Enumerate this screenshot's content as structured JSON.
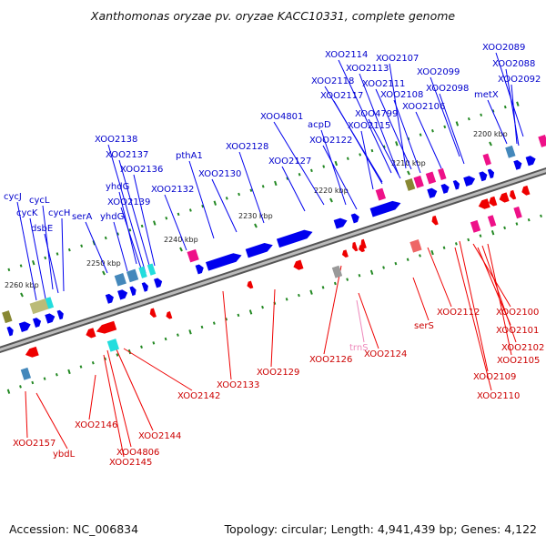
{
  "title": "Xanthomonas oryzae pv. oryzae KACC10331, complete genome",
  "footer": {
    "accession": "Accession: NC_006834",
    "summary": "Topology: circular; Length: 4,941,439 bp; Genes: 4,122"
  },
  "ticks": [
    {
      "label": "2200 kbp",
      "pos": 2200
    },
    {
      "label": "2210 kbp",
      "pos": 2210
    },
    {
      "label": "2220 kbp",
      "pos": 2220
    },
    {
      "label": "2230 kbp",
      "pos": 2230
    },
    {
      "label": "2240 kbp",
      "pos": 2240
    },
    {
      "label": "2250 kbp",
      "pos": 2250
    },
    {
      "label": "2260 kbp",
      "pos": 2260
    }
  ],
  "forward_labels": [
    {
      "text": "XOO2089",
      "strand": "forward"
    },
    {
      "text": "XOO2088",
      "strand": "forward"
    },
    {
      "text": "XOO2092",
      "strand": "forward"
    },
    {
      "text": "metX",
      "strand": "forward"
    },
    {
      "text": "XOO2107",
      "strand": "forward"
    },
    {
      "text": "XOO2114",
      "strand": "forward"
    },
    {
      "text": "XOO2099",
      "strand": "forward"
    },
    {
      "text": "XOO2113",
      "strand": "forward"
    },
    {
      "text": "XOO2098",
      "strand": "forward"
    },
    {
      "text": "XOO2118",
      "strand": "forward"
    },
    {
      "text": "XOO2111",
      "strand": "forward"
    },
    {
      "text": "XOO2117",
      "strand": "forward"
    },
    {
      "text": "XOO2108",
      "strand": "forward"
    },
    {
      "text": "XOO2106",
      "strand": "forward"
    },
    {
      "text": "XOO4799",
      "strand": "forward"
    },
    {
      "text": "XOO4801",
      "strand": "forward"
    },
    {
      "text": "XOO2115",
      "strand": "forward"
    },
    {
      "text": "acpD",
      "strand": "forward"
    },
    {
      "text": "XOO2122",
      "strand": "forward"
    },
    {
      "text": "XOO2138",
      "strand": "forward"
    },
    {
      "text": "XOO2128",
      "strand": "forward"
    },
    {
      "text": "pthA1",
      "strand": "forward"
    },
    {
      "text": "XOO2137",
      "strand": "forward"
    },
    {
      "text": "XOO2127",
      "strand": "forward"
    },
    {
      "text": "XOO2136",
      "strand": "forward"
    },
    {
      "text": "XOO2130",
      "strand": "forward"
    },
    {
      "text": "yhdG",
      "strand": "forward"
    },
    {
      "text": "XOO2132",
      "strand": "forward"
    },
    {
      "text": "cycJ",
      "strand": "forward"
    },
    {
      "text": "cycL",
      "strand": "forward"
    },
    {
      "text": "XOO2139",
      "strand": "forward"
    },
    {
      "text": "cycK",
      "strand": "forward"
    },
    {
      "text": "cycH",
      "strand": "forward"
    },
    {
      "text": "serA",
      "strand": "forward"
    },
    {
      "text": "yhdG",
      "strand": "forward"
    },
    {
      "text": "dsbE",
      "strand": "forward"
    }
  ],
  "reverse_labels": [
    {
      "text": "XOO2100",
      "strand": "reverse"
    },
    {
      "text": "XOO2112",
      "strand": "reverse"
    },
    {
      "text": "XOO2101",
      "strand": "reverse"
    },
    {
      "text": "serS",
      "strand": "reverse"
    },
    {
      "text": "XOO2102",
      "strand": "reverse"
    },
    {
      "text": "trnS",
      "strand": "rna"
    },
    {
      "text": "XOO2105",
      "strand": "reverse"
    },
    {
      "text": "XOO2126",
      "strand": "reverse"
    },
    {
      "text": "XOO2124",
      "strand": "reverse"
    },
    {
      "text": "XOO2129",
      "strand": "reverse"
    },
    {
      "text": "XOO2109",
      "strand": "reverse"
    },
    {
      "text": "XOO2133",
      "strand": "reverse"
    },
    {
      "text": "XOO2110",
      "strand": "reverse"
    },
    {
      "text": "XOO2142",
      "strand": "reverse"
    },
    {
      "text": "XOO2146",
      "strand": "reverse"
    },
    {
      "text": "XOO2144",
      "strand": "reverse"
    },
    {
      "text": "XOO2157",
      "strand": "reverse"
    },
    {
      "text": "XOO4806",
      "strand": "reverse"
    },
    {
      "text": "ybdL",
      "strand": "reverse"
    },
    {
      "text": "XOO2145",
      "strand": "reverse"
    }
  ],
  "colors": {
    "forward_gene": "#0000ee",
    "reverse_gene": "#ee0000",
    "backbone": "#888888",
    "tick": "#228822",
    "cog_magenta": "#ee1188",
    "cog_olive": "#888833",
    "cog_tan": "#bbbb77",
    "cog_cyan": "#22dddd",
    "cog_steel": "#4488bb",
    "cog_gray": "#999999",
    "cog_salmon": "#ee6666"
  }
}
